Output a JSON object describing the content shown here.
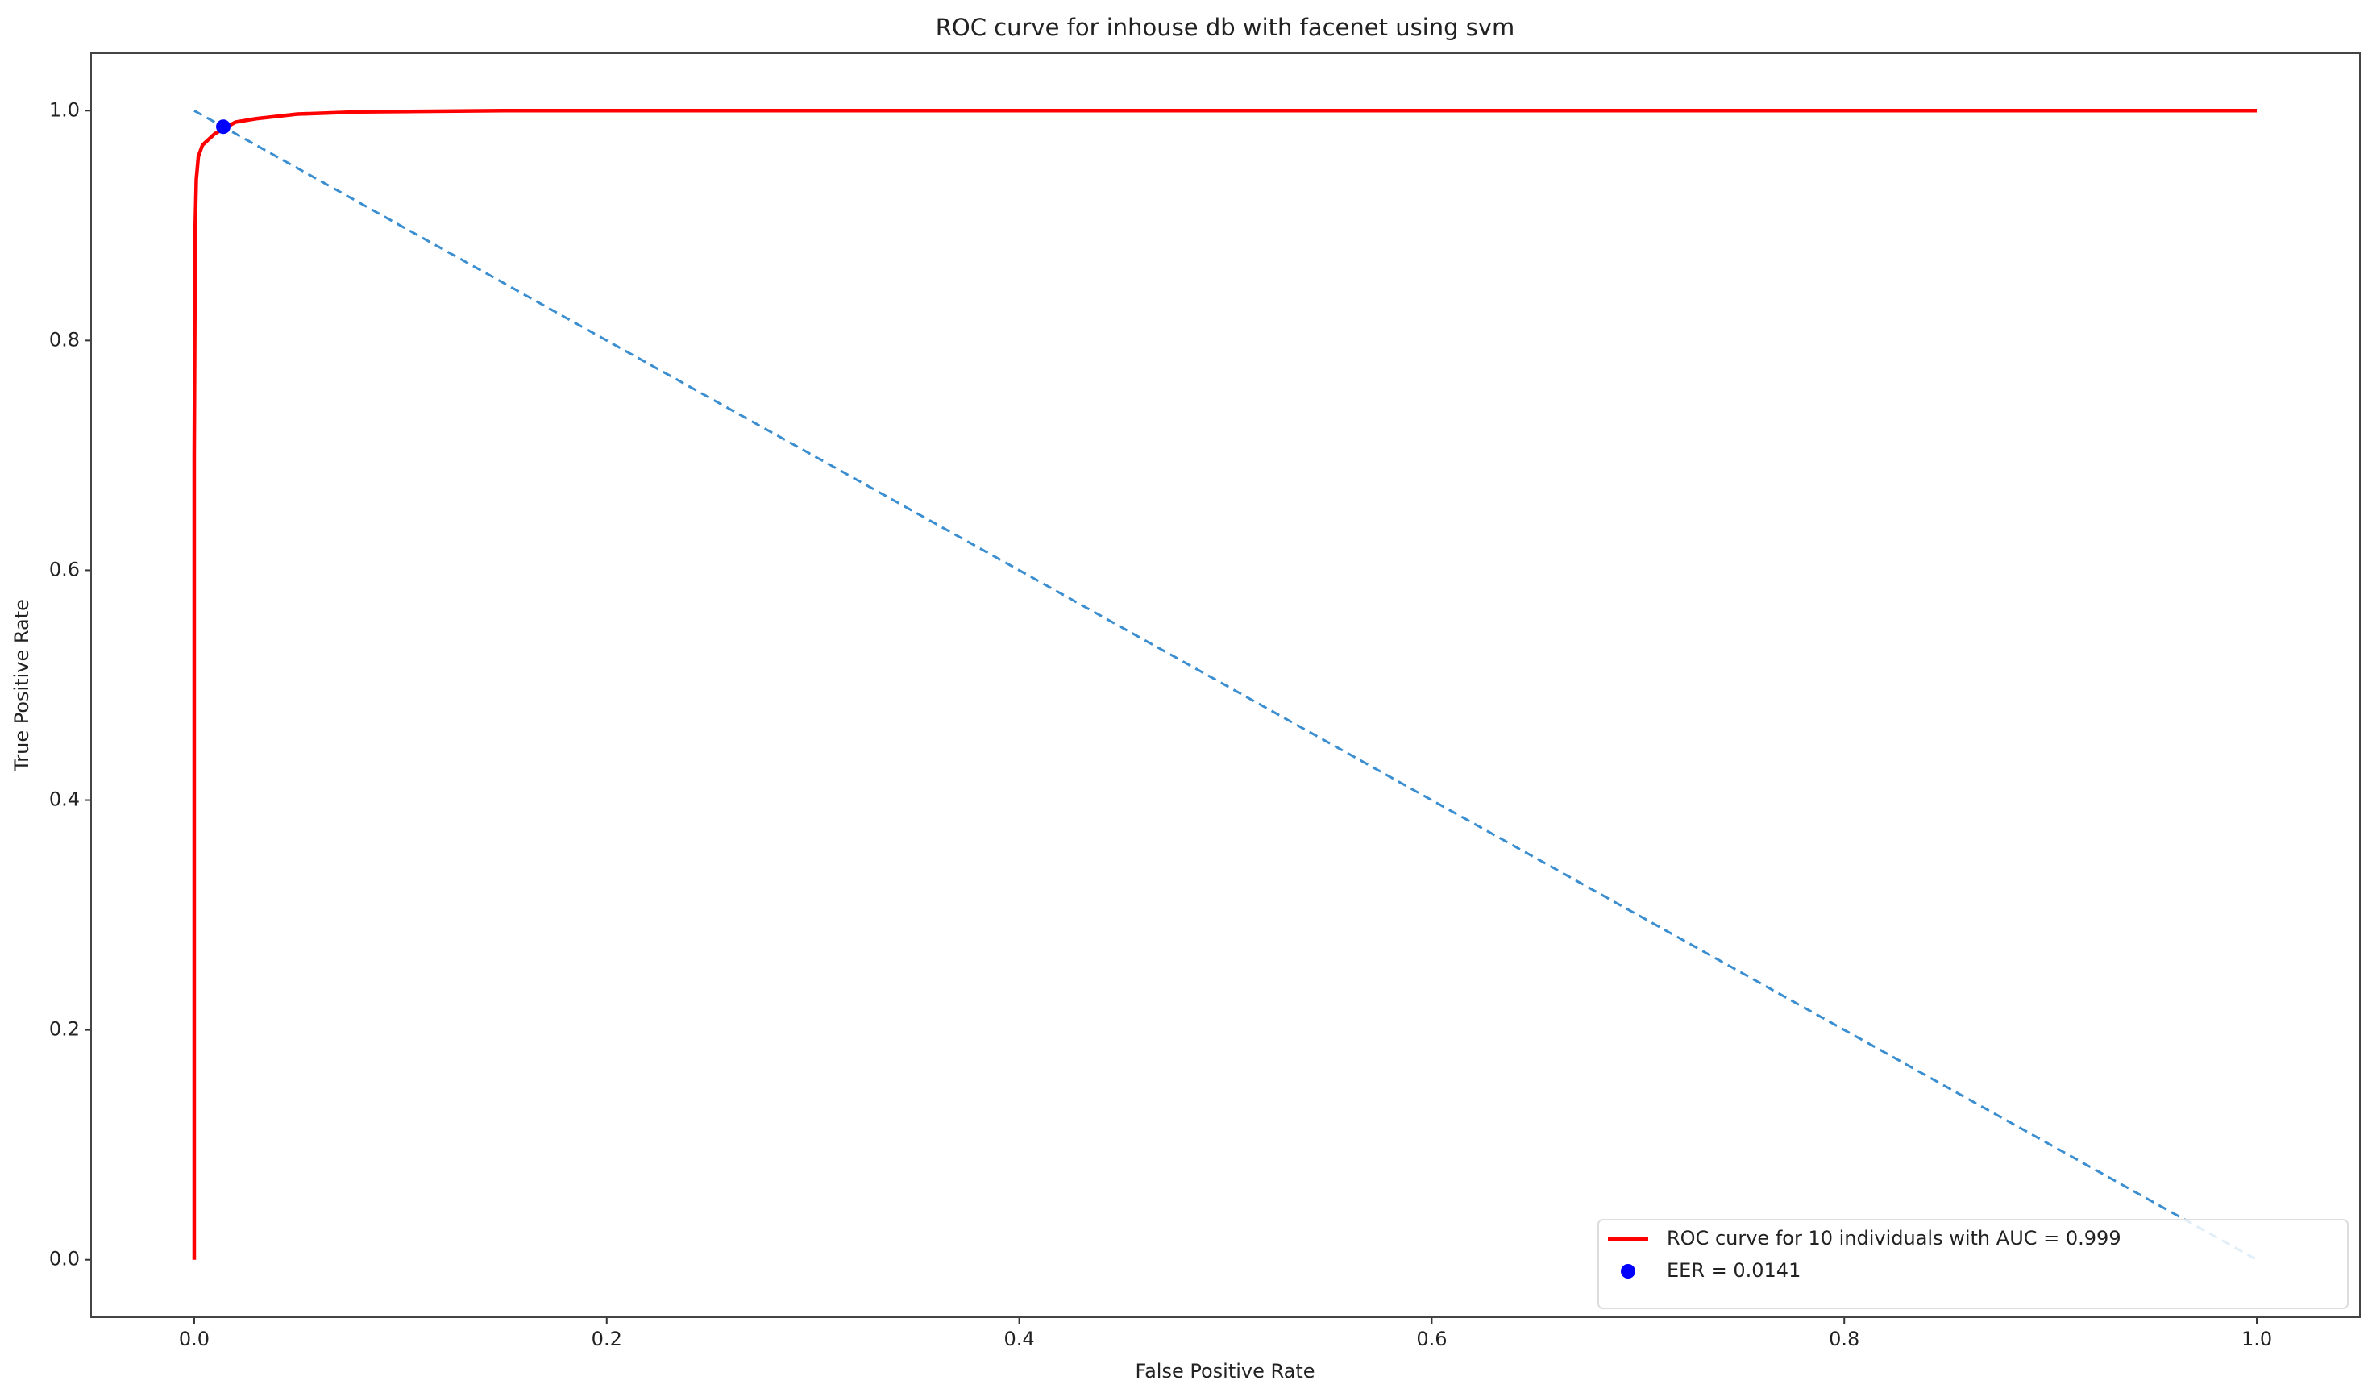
{
  "chart_data": {
    "type": "line",
    "title": "ROC curve for inhouse db with facenet using svm",
    "xlabel": "False Positive Rate",
    "ylabel": "True Positive Rate",
    "xlim": [
      -0.05,
      1.05
    ],
    "ylim": [
      -0.05,
      1.05
    ],
    "xticks": [
      {
        "value": 0,
        "label": "0.0"
      },
      {
        "value": 0.2,
        "label": "0.2"
      },
      {
        "value": 0.4,
        "label": "0.4"
      },
      {
        "value": 0.6,
        "label": "0.6"
      },
      {
        "value": 0.8,
        "label": "0.8"
      },
      {
        "value": 1,
        "label": "1.0"
      }
    ],
    "yticks": [
      {
        "value": 0,
        "label": "0.0"
      },
      {
        "value": 0.2,
        "label": "0.2"
      },
      {
        "value": 0.4,
        "label": "0.4"
      },
      {
        "value": 0.6,
        "label": "0.6"
      },
      {
        "value": 0.8,
        "label": "0.8"
      },
      {
        "value": 1,
        "label": "1.0"
      }
    ],
    "grid": false,
    "legend": "lower right",
    "series": [
      {
        "name": "ROC curve for 10 individuals with AUC = 0.999",
        "color": "#ff0000",
        "type": "line",
        "x": [
          0,
          0,
          0.0005,
          0.001,
          0.002,
          0.004,
          0.007,
          0.01,
          0.015,
          0.02,
          0.03,
          0.05,
          0.08,
          0.15,
          0.3,
          1
        ],
        "values": [
          0,
          0.7,
          0.9,
          0.94,
          0.96,
          0.97,
          0.975,
          0.98,
          0.985,
          0.99,
          0.993,
          0.997,
          0.999,
          1,
          1,
          1
        ]
      },
      {
        "name": "EER = 0.0141",
        "color": "#0000ff",
        "type": "scatter",
        "x": [
          0.0141
        ],
        "values": [
          0.986
        ]
      },
      {
        "color": "#3b8ed0",
        "type": "dashed",
        "x": [
          0,
          1
        ],
        "values": [
          1,
          0
        ]
      }
    ]
  }
}
